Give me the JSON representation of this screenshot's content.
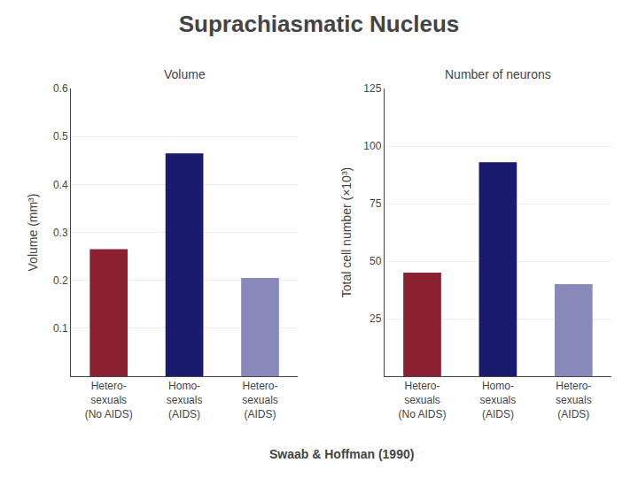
{
  "title": "Suprachiasmatic Nucleus",
  "subtitle": "Swaab & Hoffman (1990)",
  "chart_data": [
    {
      "type": "bar",
      "title": "Volume",
      "ylabel": "Volume (mm³)",
      "categories": [
        "Hetero-\nsexuals\n(No AIDS)",
        "Homo-\nsexuals\n(AIDS)",
        "Hetero-\nsexuals\n(AIDS)"
      ],
      "values": [
        0.265,
        0.465,
        0.205
      ],
      "colors": [
        "#8b2030",
        "#1a1a6e",
        "#8888bb"
      ],
      "ylim": [
        0,
        0.6
      ],
      "yticks": [
        0.1,
        0.2,
        0.3,
        0.4,
        0.5,
        0.6
      ],
      "grid": true
    },
    {
      "type": "bar",
      "title": "Number of neurons",
      "ylabel": "Total cell number (×10³)",
      "categories": [
        "Hetero-\nsexuals\n(No AIDS)",
        "Homo-\nsexuals\n(AIDS)",
        "Hetero-\nsexuals\n(AIDS)"
      ],
      "values": [
        45,
        93,
        40
      ],
      "colors": [
        "#8b2030",
        "#1a1a6e",
        "#8888bb"
      ],
      "ylim": [
        0,
        125
      ],
      "yticks": [
        25,
        50,
        75,
        100,
        125
      ],
      "grid": true
    }
  ]
}
